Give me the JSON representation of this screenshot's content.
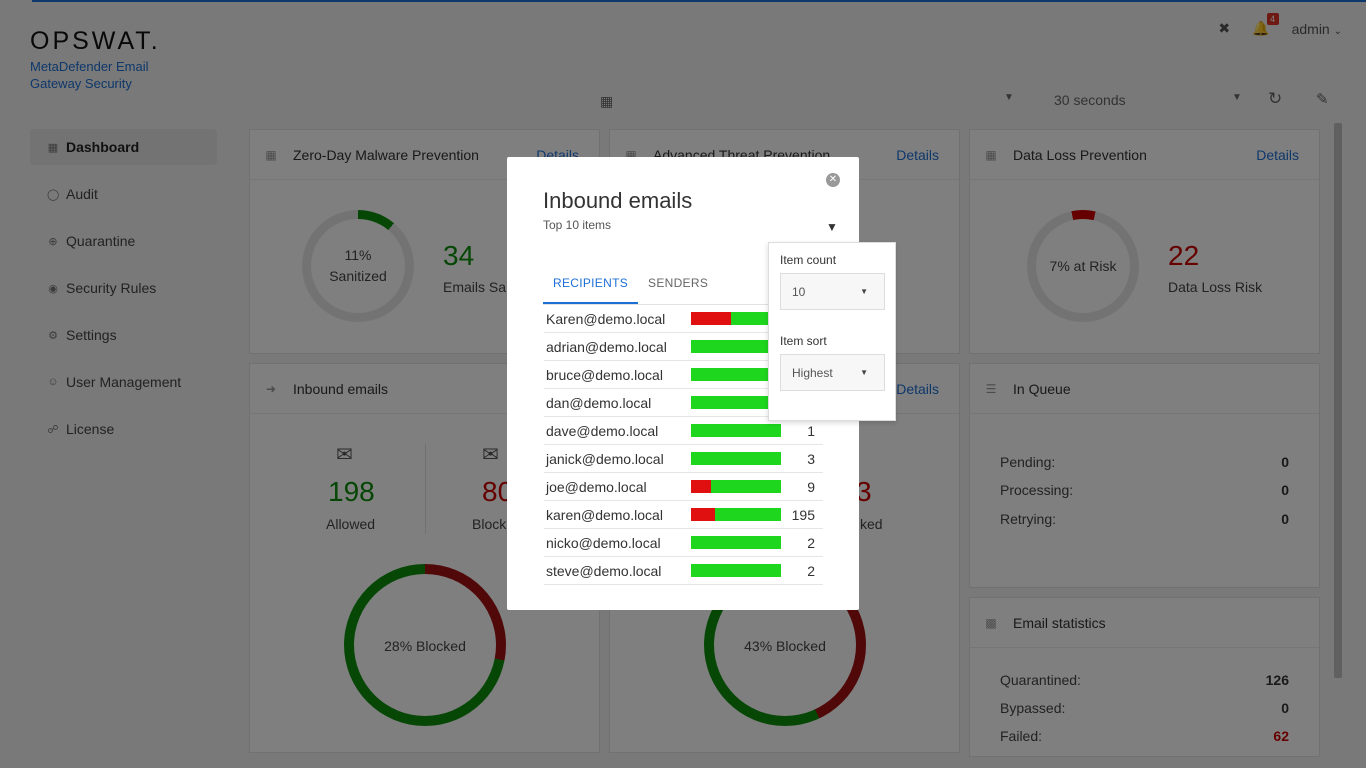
{
  "brand": {
    "logo": "OPSWAT.",
    "product": "MetaDefender Email Gateway Security"
  },
  "header": {
    "notifications_count": "4",
    "user": "admin"
  },
  "toolbar": {
    "interval": "30 seconds"
  },
  "sidebar": {
    "items": [
      {
        "label": "Dashboard",
        "icon": "grid-icon",
        "active": true
      },
      {
        "label": "Audit",
        "icon": "audit-icon"
      },
      {
        "label": "Quarantine",
        "icon": "quarantine-icon"
      },
      {
        "label": "Security Rules",
        "icon": "shield-icon"
      },
      {
        "label": "Settings",
        "icon": "gear-icon"
      },
      {
        "label": "User Management",
        "icon": "user-icon"
      },
      {
        "label": "License",
        "icon": "license-icon"
      }
    ]
  },
  "cards": {
    "zero_day": {
      "title": "Zero-Day Malware Prevention",
      "details": "Details",
      "ring_pct": "11%",
      "ring_label": "Sanitized",
      "value": "34",
      "value_label": "Emails Sa",
      "progress": 0.11
    },
    "advanced": {
      "title": "Advanced Threat Prevention",
      "details": "Details",
      "ring_label": "43% Blocked",
      "progress": 0.43
    },
    "dlp": {
      "title": "Data Loss Prevention",
      "details": "Details",
      "ring_label": "7% at Risk",
      "value": "22",
      "value_label": "Data Loss Risk",
      "progress": 0.07
    },
    "inbound": {
      "title": "Inbound emails",
      "allowed_value": "198",
      "allowed_label": "Allowed",
      "blocked_value": "80",
      "blocked_label": "Block",
      "ring_label": "28% Blocked",
      "progress": 0.28
    },
    "middle_partial": {
      "details": "Details",
      "value": "3",
      "label": "ked"
    },
    "queue": {
      "title": "In Queue",
      "rows": [
        {
          "label": "Pending:",
          "value": "0"
        },
        {
          "label": "Processing:",
          "value": "0"
        },
        {
          "label": "Retrying:",
          "value": "0"
        }
      ]
    },
    "stats": {
      "title": "Email statistics",
      "rows": [
        {
          "label": "Quarantined:",
          "value": "126"
        },
        {
          "label": "Bypassed:",
          "value": "0"
        },
        {
          "label": "Failed:",
          "value": "62"
        }
      ]
    }
  },
  "modal": {
    "title": "Inbound emails",
    "subtitle": "Top 10 items",
    "tabs": [
      "RECIPIENTS",
      "SENDERS"
    ],
    "rows": [
      {
        "name": "Karen@demo.local",
        "blocked_frac": 0.44,
        "count": ""
      },
      {
        "name": "adrian@demo.local",
        "blocked_frac": 0,
        "count": ""
      },
      {
        "name": "bruce@demo.local",
        "blocked_frac": 0,
        "count": ""
      },
      {
        "name": "dan@demo.local",
        "blocked_frac": 0,
        "count": ""
      },
      {
        "name": "dave@demo.local",
        "blocked_frac": 0,
        "count": "1"
      },
      {
        "name": "janick@demo.local",
        "blocked_frac": 0,
        "count": "3"
      },
      {
        "name": "joe@demo.local",
        "blocked_frac": 0.22,
        "count": "9"
      },
      {
        "name": "karen@demo.local",
        "blocked_frac": 0.27,
        "count": "195"
      },
      {
        "name": "nicko@demo.local",
        "blocked_frac": 0,
        "count": "2"
      },
      {
        "name": "steve@demo.local",
        "blocked_frac": 0,
        "count": "2"
      }
    ],
    "filter": {
      "count_label": "Item count",
      "count_value": "10",
      "sort_label": "Item sort",
      "sort_value": "Highest"
    }
  },
  "colors": {
    "accent": "#1d6fd6",
    "allowed": "#0d8f0d",
    "blocked": "#c00000",
    "bar_blocked": "#e01010",
    "bar_allowed": "#1ed61e"
  }
}
